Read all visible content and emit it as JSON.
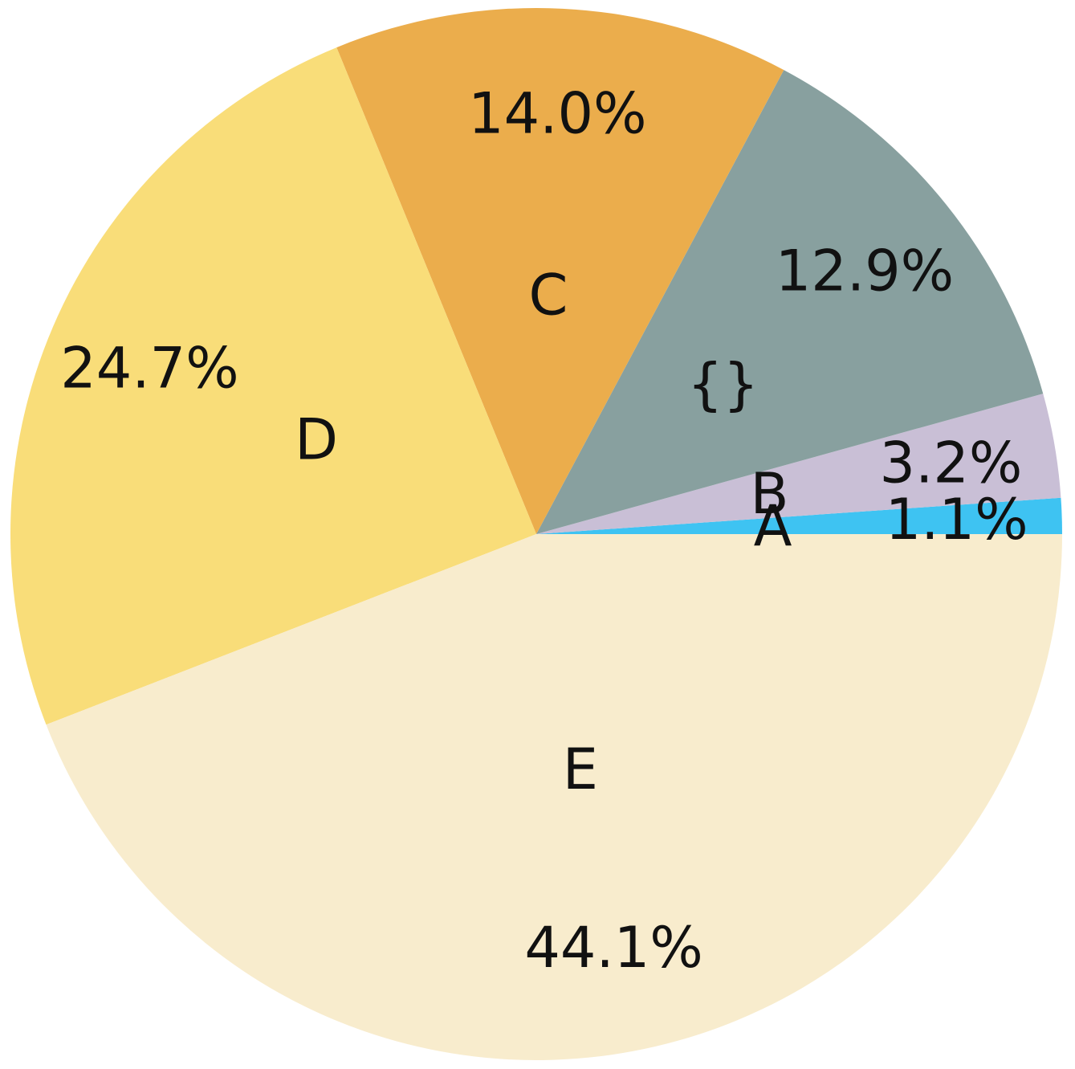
{
  "chart_data": {
    "type": "pie",
    "title": "",
    "start_angle_deg": 0,
    "direction": "counterclockwise",
    "slices": [
      {
        "label": "A",
        "value": 1.1,
        "pct_label": "1.1%",
        "color": "#3ec3f2"
      },
      {
        "label": "B",
        "value": 3.2,
        "pct_label": "3.2%",
        "color": "#c9bfd6"
      },
      {
        "label": "{}",
        "value": 12.9,
        "pct_label": "12.9%",
        "color": "#88a09f"
      },
      {
        "label": "C",
        "value": 14.0,
        "pct_label": "14.0%",
        "color": "#ebad4c"
      },
      {
        "label": "D",
        "value": 24.7,
        "pct_label": "24.7%",
        "color": "#f9dd79"
      },
      {
        "label": "E",
        "value": 44.1,
        "pct_label": "44.1%",
        "color": "#f8eccd"
      }
    ]
  }
}
